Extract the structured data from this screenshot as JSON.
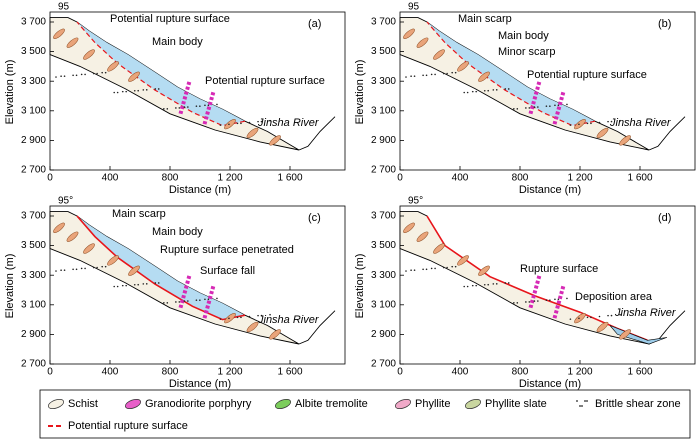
{
  "axes": {
    "xlabel": "Distance (m)",
    "ylabel": "Elevation (m)",
    "xticks": [
      "0",
      "400",
      "800",
      "1 200",
      "1 600"
    ],
    "yticks": [
      "2 700",
      "2 900",
      "3 100",
      "3 300",
      "3 500",
      "3 700"
    ]
  },
  "panels": [
    {
      "label": "(a)",
      "angle": "95",
      "annotations": [
        {
          "text": "Potential rupture surface",
          "color": "#e8151b"
        },
        {
          "text": "Main body",
          "color": "#000000"
        },
        {
          "text": "Potential rupture surface",
          "color": "#e8151b"
        },
        {
          "text": "Jinsha River",
          "color": "#000000"
        }
      ]
    },
    {
      "label": "(b)",
      "angle": "95",
      "annotations": [
        {
          "text": "Main scarp",
          "color": "#e8151b"
        },
        {
          "text": "Main body",
          "color": "#000000"
        },
        {
          "text": "Minor scarp",
          "color": "#e8151b"
        },
        {
          "text": "Potential rupture surface",
          "color": "#e8151b"
        },
        {
          "text": "Jinsha River",
          "color": "#000000"
        }
      ]
    },
    {
      "label": "(c)",
      "angle": "95°",
      "annotations": [
        {
          "text": "Main scarp",
          "color": "#e8151b"
        },
        {
          "text": "Main body",
          "color": "#000000"
        },
        {
          "text": "Rupture surface penetrated",
          "color": "#e8151b"
        },
        {
          "text": "Surface fall",
          "color": "#e8151b"
        },
        {
          "text": "Jinsha River",
          "color": "#000000"
        }
      ]
    },
    {
      "label": "(d)",
      "angle": "95°",
      "annotations": [
        {
          "text": "Rupture surface",
          "color": "#e8151b"
        },
        {
          "text": "Deposition area",
          "color": "#000000"
        },
        {
          "text": "Jinsha River",
          "color": "#000000"
        }
      ]
    }
  ],
  "legend": [
    "Schist",
    "Granodiorite porphyry",
    "Albite tremolite",
    "Phyllite",
    "Phyllite slate",
    "Brittle shear zone",
    "Potential rupture surface"
  ]
}
